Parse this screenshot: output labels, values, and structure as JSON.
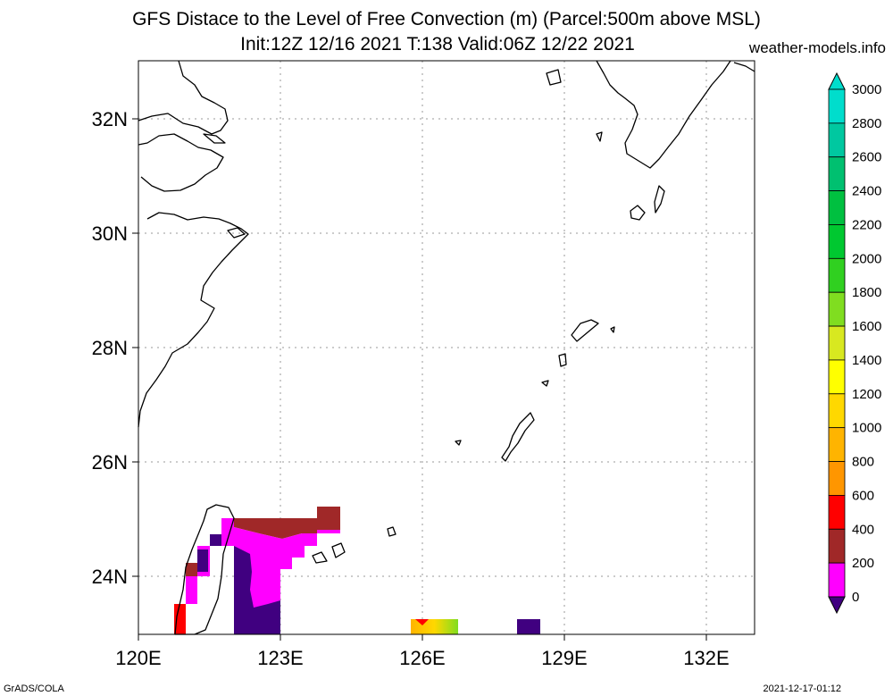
{
  "header": {
    "title_line1": "GFS Distace to the Level of Free Convection (m) (Parcel:500m above MSL)",
    "title_line2": "Init:12Z 12/16 2021 T:138 Valid:06Z 12/22 2021",
    "site": "weather-models.info"
  },
  "footer": {
    "left": "GrADS/COLA",
    "right": "2021-12-17-01:12"
  },
  "map": {
    "lat_labels": [
      "32N",
      "30N",
      "28N",
      "26N",
      "24N"
    ],
    "lon_labels": [
      "120E",
      "123E",
      "126E",
      "129E",
      "132E"
    ]
  },
  "colorbar": {
    "labels": [
      "3000",
      "2800",
      "2600",
      "2400",
      "2200",
      "2000",
      "1800",
      "1600",
      "1400",
      "1200",
      "1000",
      "800",
      "600",
      "400",
      "200",
      "0"
    ],
    "colors": [
      "#00ddcc",
      "#00c8a0",
      "#00c070",
      "#00c040",
      "#00c830",
      "#30d020",
      "#80dd20",
      "#d8e820",
      "#ffff00",
      "#ffd800",
      "#ffb400",
      "#ff9600",
      "#ff0000",
      "#a02828",
      "#ff00ff",
      "#400080"
    ]
  }
}
